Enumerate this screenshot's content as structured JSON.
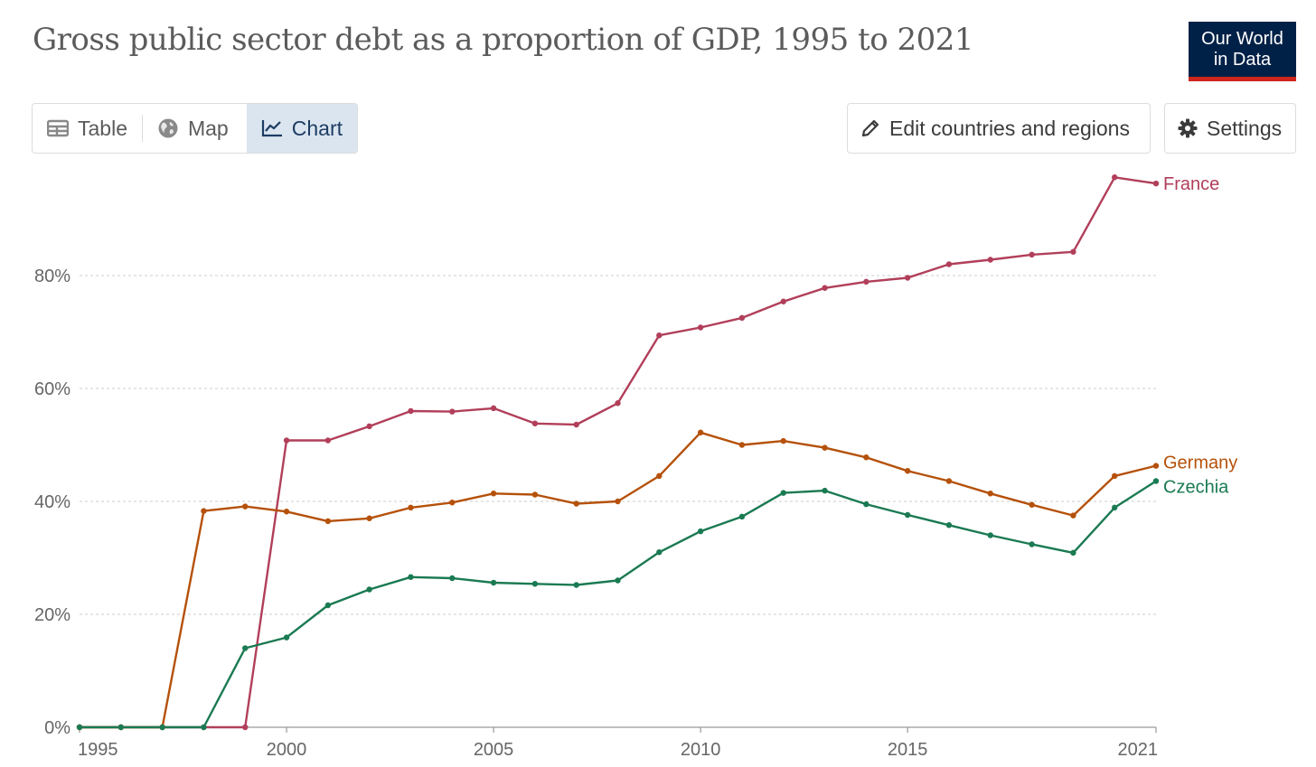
{
  "header": {
    "title": "Gross public sector debt as a proportion of GDP, 1995 to 2021",
    "logo_line1": "Our World",
    "logo_line2": "in Data"
  },
  "tabs": [
    {
      "label": "Table",
      "icon": "table-icon",
      "active": false
    },
    {
      "label": "Map",
      "icon": "globe-icon",
      "active": false
    },
    {
      "label": "Chart",
      "icon": "line-chart-icon",
      "active": true
    }
  ],
  "toolbar": {
    "edit_label": "Edit countries and regions",
    "settings_label": "Settings"
  },
  "colors": {
    "France": "#b13f5a",
    "Germany": "#b5510a",
    "Czechia": "#1a7a52",
    "grid": "#cccccc",
    "axis": "#999999"
  },
  "chart_data": {
    "type": "line",
    "title": "Gross public sector debt as a proportion of GDP, 1995 to 2021",
    "xlabel": "",
    "ylabel": "",
    "xlim": [
      1995,
      2021
    ],
    "ylim": [
      0,
      100
    ],
    "x_ticks": [
      1995,
      2000,
      2005,
      2010,
      2015,
      2021
    ],
    "y_ticks": [
      0,
      20,
      40,
      60,
      80
    ],
    "y_tick_labels": [
      "0%",
      "20%",
      "40%",
      "60%",
      "80%"
    ],
    "grid": true,
    "series": [
      {
        "name": "France",
        "points": [
          [
            1995,
            0
          ],
          [
            1996,
            0
          ],
          [
            1997,
            0
          ],
          [
            1998,
            0
          ],
          [
            1999,
            0
          ],
          [
            2000,
            50.8
          ],
          [
            2001,
            50.8
          ],
          [
            2002,
            53.3
          ],
          [
            2003,
            56
          ],
          [
            2004,
            55.9
          ],
          [
            2005,
            56.5
          ],
          [
            2006,
            53.8
          ],
          [
            2007,
            53.6
          ],
          [
            2008,
            57.4
          ],
          [
            2009,
            69.4
          ],
          [
            2010,
            70.8
          ],
          [
            2011,
            72.5
          ],
          [
            2012,
            75.4
          ],
          [
            2013,
            77.8
          ],
          [
            2014,
            78.9
          ],
          [
            2015,
            79.6
          ],
          [
            2016,
            82
          ],
          [
            2017,
            82.8
          ],
          [
            2018,
            83.7
          ],
          [
            2019,
            84.2
          ],
          [
            2020,
            97.4
          ],
          [
            2021,
            96.3
          ]
        ]
      },
      {
        "name": "Germany",
        "points": [
          [
            1995,
            0
          ],
          [
            1996,
            0
          ],
          [
            1997,
            0
          ],
          [
            1998,
            38.3
          ],
          [
            1999,
            39.1
          ],
          [
            2000,
            38.2
          ],
          [
            2001,
            36.5
          ],
          [
            2002,
            37
          ],
          [
            2003,
            38.9
          ],
          [
            2004,
            39.8
          ],
          [
            2005,
            41.4
          ],
          [
            2006,
            41.2
          ],
          [
            2007,
            39.6
          ],
          [
            2008,
            40
          ],
          [
            2009,
            44.5
          ],
          [
            2010,
            52.2
          ],
          [
            2011,
            50
          ],
          [
            2012,
            50.7
          ],
          [
            2013,
            49.5
          ],
          [
            2014,
            47.8
          ],
          [
            2015,
            45.4
          ],
          [
            2016,
            43.6
          ],
          [
            2017,
            41.4
          ],
          [
            2018,
            39.4
          ],
          [
            2019,
            37.5
          ],
          [
            2020,
            44.5
          ],
          [
            2021,
            46.3
          ]
        ]
      },
      {
        "name": "Czechia",
        "points": [
          [
            1995,
            0
          ],
          [
            1996,
            0
          ],
          [
            1997,
            0
          ],
          [
            1998,
            0
          ],
          [
            1999,
            14
          ],
          [
            2000,
            15.9
          ],
          [
            2001,
            21.6
          ],
          [
            2002,
            24.4
          ],
          [
            2003,
            26.6
          ],
          [
            2004,
            26.4
          ],
          [
            2005,
            25.6
          ],
          [
            2006,
            25.4
          ],
          [
            2007,
            25.2
          ],
          [
            2008,
            26
          ],
          [
            2009,
            31
          ],
          [
            2010,
            34.7
          ],
          [
            2011,
            37.3
          ],
          [
            2012,
            41.5
          ],
          [
            2013,
            41.9
          ],
          [
            2014,
            39.5
          ],
          [
            2015,
            37.6
          ],
          [
            2016,
            35.8
          ],
          [
            2017,
            34
          ],
          [
            2018,
            32.4
          ],
          [
            2019,
            30.9
          ],
          [
            2020,
            38.9
          ],
          [
            2021,
            43.6
          ]
        ]
      }
    ]
  }
}
